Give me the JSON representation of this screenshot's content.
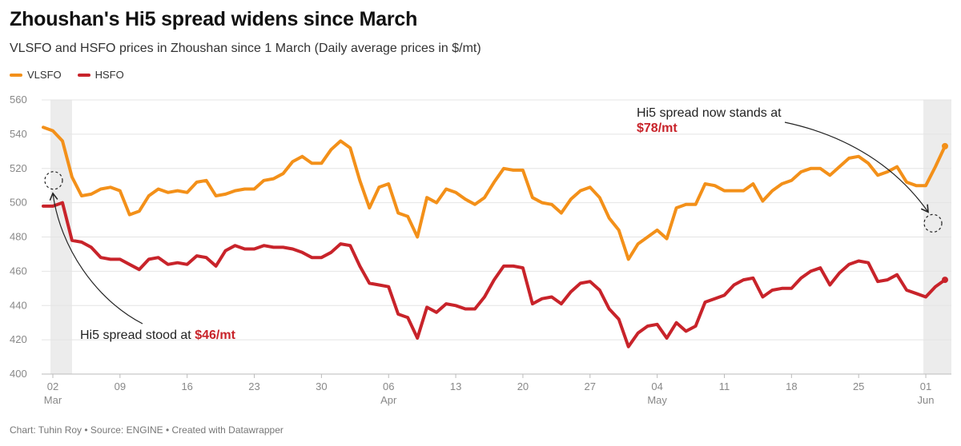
{
  "title": "Zhoushan's Hi5 spread widens since March",
  "subtitle": "VLSFO and HSFO prices in Zhoushan since 1 March (Daily average prices in $/mt)",
  "footer": "Chart: Tuhin Roy • Source: ENGINE • Created with Datawrapper",
  "colors": {
    "vlsfo": "#f39019",
    "hsfo": "#c8232a",
    "grid": "#e4e4e4",
    "shade": "#ececec"
  },
  "chart_data": {
    "type": "line",
    "title": "Zhoushan's Hi5 spread widens since March",
    "subtitle": "VLSFO and HSFO prices in Zhoushan since 1 March (Daily average prices in $/mt)",
    "xlabel": "",
    "ylabel": "",
    "ylim": [
      400,
      560
    ],
    "yticks": [
      400,
      420,
      440,
      460,
      480,
      500,
      520,
      540,
      560
    ],
    "x_range": [
      "2024-03-01",
      "2024-06-03"
    ],
    "xticks": [
      {
        "date": "2024-03-02",
        "label": "02",
        "month": "Mar"
      },
      {
        "date": "2024-03-09",
        "label": "09",
        "month": ""
      },
      {
        "date": "2024-03-16",
        "label": "16",
        "month": ""
      },
      {
        "date": "2024-03-23",
        "label": "23",
        "month": ""
      },
      {
        "date": "2024-03-30",
        "label": "30",
        "month": ""
      },
      {
        "date": "2024-04-06",
        "label": "06",
        "month": "Apr"
      },
      {
        "date": "2024-04-13",
        "label": "13",
        "month": ""
      },
      {
        "date": "2024-04-20",
        "label": "20",
        "month": ""
      },
      {
        "date": "2024-04-27",
        "label": "27",
        "month": ""
      },
      {
        "date": "2024-05-04",
        "label": "04",
        "month": "May"
      },
      {
        "date": "2024-05-11",
        "label": "11",
        "month": ""
      },
      {
        "date": "2024-05-18",
        "label": "18",
        "month": ""
      },
      {
        "date": "2024-05-25",
        "label": "25",
        "month": ""
      },
      {
        "date": "2024-06-01",
        "label": "01",
        "month": "Jun"
      }
    ],
    "shaded_ranges": [
      [
        "2024-03-02",
        "2024-03-04"
      ],
      [
        "2024-06-01",
        "2024-06-04"
      ]
    ],
    "legend_position": "top-left",
    "grid": true,
    "series": [
      {
        "name": "VLSFO",
        "color": "#f39019",
        "points": [
          [
            "2024-03-01",
            544
          ],
          [
            "2024-03-02",
            542
          ],
          [
            "2024-03-03",
            536
          ],
          [
            "2024-03-04",
            515
          ],
          [
            "2024-03-05",
            504
          ],
          [
            "2024-03-06",
            505
          ],
          [
            "2024-03-07",
            508
          ],
          [
            "2024-03-08",
            509
          ],
          [
            "2024-03-09",
            507
          ],
          [
            "2024-03-10",
            493
          ],
          [
            "2024-03-11",
            495
          ],
          [
            "2024-03-12",
            504
          ],
          [
            "2024-03-13",
            508
          ],
          [
            "2024-03-14",
            506
          ],
          [
            "2024-03-15",
            507
          ],
          [
            "2024-03-16",
            506
          ],
          [
            "2024-03-17",
            512
          ],
          [
            "2024-03-18",
            513
          ],
          [
            "2024-03-19",
            504
          ],
          [
            "2024-03-20",
            505
          ],
          [
            "2024-03-21",
            507
          ],
          [
            "2024-03-22",
            508
          ],
          [
            "2024-03-23",
            508
          ],
          [
            "2024-03-24",
            513
          ],
          [
            "2024-03-25",
            514
          ],
          [
            "2024-03-26",
            517
          ],
          [
            "2024-03-27",
            524
          ],
          [
            "2024-03-28",
            527
          ],
          [
            "2024-03-29",
            523
          ],
          [
            "2024-03-30",
            523
          ],
          [
            "2024-03-31",
            531
          ],
          [
            "2024-04-01",
            536
          ],
          [
            "2024-04-02",
            532
          ],
          [
            "2024-04-03",
            513
          ],
          [
            "2024-04-04",
            497
          ],
          [
            "2024-04-05",
            509
          ],
          [
            "2024-04-06",
            511
          ],
          [
            "2024-04-07",
            494
          ],
          [
            "2024-04-08",
            492
          ],
          [
            "2024-04-09",
            480
          ],
          [
            "2024-04-10",
            503
          ],
          [
            "2024-04-11",
            500
          ],
          [
            "2024-04-12",
            508
          ],
          [
            "2024-04-13",
            506
          ],
          [
            "2024-04-14",
            502
          ],
          [
            "2024-04-15",
            499
          ],
          [
            "2024-04-16",
            503
          ],
          [
            "2024-04-17",
            512
          ],
          [
            "2024-04-18",
            520
          ],
          [
            "2024-04-19",
            519
          ],
          [
            "2024-04-20",
            519
          ],
          [
            "2024-04-21",
            503
          ],
          [
            "2024-04-22",
            500
          ],
          [
            "2024-04-23",
            499
          ],
          [
            "2024-04-24",
            494
          ],
          [
            "2024-04-25",
            502
          ],
          [
            "2024-04-26",
            507
          ],
          [
            "2024-04-27",
            509
          ],
          [
            "2024-04-28",
            503
          ],
          [
            "2024-04-29",
            491
          ],
          [
            "2024-04-30",
            484
          ],
          [
            "2024-05-01",
            467
          ],
          [
            "2024-05-02",
            476
          ],
          [
            "2024-05-03",
            480
          ],
          [
            "2024-05-04",
            484
          ],
          [
            "2024-05-05",
            479
          ],
          [
            "2024-05-06",
            497
          ],
          [
            "2024-05-07",
            499
          ],
          [
            "2024-05-08",
            499
          ],
          [
            "2024-05-09",
            511
          ],
          [
            "2024-05-10",
            510
          ],
          [
            "2024-05-11",
            507
          ],
          [
            "2024-05-12",
            507
          ],
          [
            "2024-05-13",
            507
          ],
          [
            "2024-05-14",
            511
          ],
          [
            "2024-05-15",
            501
          ],
          [
            "2024-05-16",
            507
          ],
          [
            "2024-05-17",
            511
          ],
          [
            "2024-05-18",
            513
          ],
          [
            "2024-05-19",
            518
          ],
          [
            "2024-05-20",
            520
          ],
          [
            "2024-05-21",
            520
          ],
          [
            "2024-05-22",
            516
          ],
          [
            "2024-05-23",
            521
          ],
          [
            "2024-05-24",
            526
          ],
          [
            "2024-05-25",
            527
          ],
          [
            "2024-05-26",
            523
          ],
          [
            "2024-05-27",
            516
          ],
          [
            "2024-05-28",
            518
          ],
          [
            "2024-05-29",
            521
          ],
          [
            "2024-05-30",
            512
          ],
          [
            "2024-05-31",
            510
          ],
          [
            "2024-06-01",
            510
          ],
          [
            "2024-06-02",
            521
          ],
          [
            "2024-06-03",
            533
          ]
        ]
      },
      {
        "name": "HSFO",
        "color": "#c8232a",
        "points": [
          [
            "2024-03-01",
            498
          ],
          [
            "2024-03-02",
            498
          ],
          [
            "2024-03-03",
            500
          ],
          [
            "2024-03-04",
            478
          ],
          [
            "2024-03-05",
            477
          ],
          [
            "2024-03-06",
            474
          ],
          [
            "2024-03-07",
            468
          ],
          [
            "2024-03-08",
            467
          ],
          [
            "2024-03-09",
            467
          ],
          [
            "2024-03-10",
            464
          ],
          [
            "2024-03-11",
            461
          ],
          [
            "2024-03-12",
            467
          ],
          [
            "2024-03-13",
            468
          ],
          [
            "2024-03-14",
            464
          ],
          [
            "2024-03-15",
            465
          ],
          [
            "2024-03-16",
            464
          ],
          [
            "2024-03-17",
            469
          ],
          [
            "2024-03-18",
            468
          ],
          [
            "2024-03-19",
            463
          ],
          [
            "2024-03-20",
            472
          ],
          [
            "2024-03-21",
            475
          ],
          [
            "2024-03-22",
            473
          ],
          [
            "2024-03-23",
            473
          ],
          [
            "2024-03-24",
            475
          ],
          [
            "2024-03-25",
            474
          ],
          [
            "2024-03-26",
            474
          ],
          [
            "2024-03-27",
            473
          ],
          [
            "2024-03-28",
            471
          ],
          [
            "2024-03-29",
            468
          ],
          [
            "2024-03-30",
            468
          ],
          [
            "2024-03-31",
            471
          ],
          [
            "2024-04-01",
            476
          ],
          [
            "2024-04-02",
            475
          ],
          [
            "2024-04-03",
            463
          ],
          [
            "2024-04-04",
            453
          ],
          [
            "2024-04-05",
            452
          ],
          [
            "2024-04-06",
            451
          ],
          [
            "2024-04-07",
            435
          ],
          [
            "2024-04-08",
            433
          ],
          [
            "2024-04-09",
            421
          ],
          [
            "2024-04-10",
            439
          ],
          [
            "2024-04-11",
            436
          ],
          [
            "2024-04-12",
            441
          ],
          [
            "2024-04-13",
            440
          ],
          [
            "2024-04-14",
            438
          ],
          [
            "2024-04-15",
            438
          ],
          [
            "2024-04-16",
            445
          ],
          [
            "2024-04-17",
            455
          ],
          [
            "2024-04-18",
            463
          ],
          [
            "2024-04-19",
            463
          ],
          [
            "2024-04-20",
            462
          ],
          [
            "2024-04-21",
            441
          ],
          [
            "2024-04-22",
            444
          ],
          [
            "2024-04-23",
            445
          ],
          [
            "2024-04-24",
            441
          ],
          [
            "2024-04-25",
            448
          ],
          [
            "2024-04-26",
            453
          ],
          [
            "2024-04-27",
            454
          ],
          [
            "2024-04-28",
            449
          ],
          [
            "2024-04-29",
            438
          ],
          [
            "2024-04-30",
            432
          ],
          [
            "2024-05-01",
            416
          ],
          [
            "2024-05-02",
            424
          ],
          [
            "2024-05-03",
            428
          ],
          [
            "2024-05-04",
            429
          ],
          [
            "2024-05-05",
            421
          ],
          [
            "2024-05-06",
            430
          ],
          [
            "2024-05-07",
            425
          ],
          [
            "2024-05-08",
            428
          ],
          [
            "2024-05-09",
            442
          ],
          [
            "2024-05-10",
            444
          ],
          [
            "2024-05-11",
            446
          ],
          [
            "2024-05-12",
            452
          ],
          [
            "2024-05-13",
            455
          ],
          [
            "2024-05-14",
            456
          ],
          [
            "2024-05-15",
            445
          ],
          [
            "2024-05-16",
            449
          ],
          [
            "2024-05-17",
            450
          ],
          [
            "2024-05-18",
            450
          ],
          [
            "2024-05-19",
            456
          ],
          [
            "2024-05-20",
            460
          ],
          [
            "2024-05-21",
            462
          ],
          [
            "2024-05-22",
            452
          ],
          [
            "2024-05-23",
            459
          ],
          [
            "2024-05-24",
            464
          ],
          [
            "2024-05-25",
            466
          ],
          [
            "2024-05-26",
            465
          ],
          [
            "2024-05-27",
            454
          ],
          [
            "2024-05-28",
            455
          ],
          [
            "2024-05-29",
            458
          ],
          [
            "2024-05-30",
            449
          ],
          [
            "2024-05-31",
            447
          ],
          [
            "2024-06-01",
            445
          ],
          [
            "2024-06-02",
            451
          ],
          [
            "2024-06-03",
            455
          ]
        ]
      }
    ],
    "annotations": [
      {
        "text": "Hi5 spread stood at ",
        "highlight": "$46/mt",
        "date": "2024-03-02",
        "value": 513
      },
      {
        "text": "Hi5 spread now stands at",
        "highlight": "$78/mt",
        "date": "2024-06-02",
        "value": 488
      }
    ]
  }
}
